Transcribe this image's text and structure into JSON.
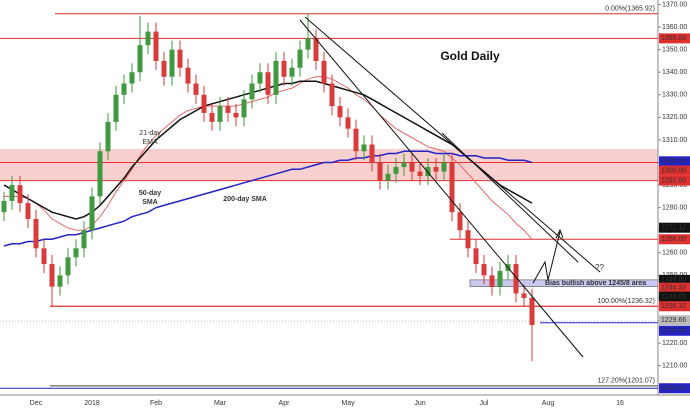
{
  "chart_data": {
    "type": "candlestick",
    "title": "Gold Daily",
    "categories": [
      null,
      null,
      null,
      null,
      "Dec",
      null,
      null,
      null,
      null,
      null,
      null,
      "2018",
      null,
      null,
      null,
      null,
      null,
      null,
      null,
      "Feb",
      null,
      null,
      null,
      null,
      null,
      null,
      null,
      "Mar",
      null,
      null,
      null,
      null,
      null,
      null,
      null,
      "Apr",
      null,
      null,
      null,
      null,
      null,
      null,
      null,
      "May",
      null,
      null,
      null,
      null,
      null,
      null,
      null,
      null,
      "Jun",
      null,
      null,
      null,
      null,
      null,
      null,
      null,
      "Jul",
      null,
      null,
      null,
      null,
      null,
      null,
      null,
      "Aug",
      null,
      null,
      null,
      null,
      null,
      null,
      null,
      null,
      "16",
      null,
      null,
      null,
      null
    ],
    "open": [
      1278,
      1283,
      1290,
      1282,
      1275,
      1262,
      1255,
      1245,
      1250,
      1258,
      1262,
      1270,
      1285,
      1305,
      1318,
      1330,
      1335,
      1340,
      1352,
      1358,
      1345,
      1338,
      1350,
      1342,
      1335,
      1330,
      1322,
      1318,
      1325,
      1322,
      1320,
      1328,
      1335,
      1340,
      1330,
      1345,
      1338,
      1342,
      1350,
      1355,
      1345,
      1335,
      1325,
      1320,
      1315,
      1305,
      1308,
      1300,
      1292,
      1295,
      1298,
      1300,
      1296,
      1294,
      1298,
      1296,
      1300,
      1278,
      1270,
      1262,
      1255,
      1250,
      1245,
      1252,
      1255,
      1242,
      1240,
      null,
      null,
      null,
      null,
      null,
      null,
      null,
      null,
      null,
      null,
      null,
      null,
      null,
      null,
      null
    ],
    "high": [
      1287,
      1294,
      1294,
      1286,
      1279,
      1266,
      1259,
      1254,
      1262,
      1266,
      1274,
      1289,
      1309,
      1322,
      1334,
      1339,
      1344,
      1365,
      1362,
      1362,
      1349,
      1354,
      1354,
      1346,
      1339,
      1334,
      1326,
      1329,
      1329,
      1326,
      1332,
      1339,
      1344,
      1344,
      1349,
      1349,
      1346,
      1354,
      1366,
      1359,
      1349,
      1339,
      1329,
      1324,
      1319,
      1312,
      1312,
      1304,
      1299,
      1302,
      1304,
      1304,
      1300,
      1302,
      1302,
      1304,
      1304,
      1282,
      1274,
      1266,
      1259,
      1254,
      1256,
      1259,
      1259,
      1246,
      1244,
      null,
      null,
      null,
      null,
      null,
      null,
      null,
      null,
      null,
      null,
      null,
      null,
      null,
      null,
      null
    ],
    "low": [
      1274,
      1279,
      1278,
      1271,
      1258,
      1251,
      1236,
      1241,
      1246,
      1254,
      1258,
      1266,
      1281,
      1301,
      1314,
      1326,
      1331,
      1336,
      1348,
      1341,
      1334,
      1334,
      1338,
      1331,
      1326,
      1318,
      1314,
      1314,
      1318,
      1316,
      1316,
      1324,
      1331,
      1326,
      1326,
      1334,
      1334,
      1338,
      1346,
      1341,
      1331,
      1321,
      1316,
      1311,
      1301,
      1301,
      1296,
      1288,
      1288,
      1291,
      1294,
      1292,
      1290,
      1290,
      1292,
      1292,
      1274,
      1266,
      1258,
      1251,
      1246,
      1241,
      1241,
      1248,
      1238,
      1236,
      1212,
      null,
      null,
      null,
      null,
      null,
      null,
      null,
      null,
      null,
      null,
      null,
      null,
      null,
      null,
      null
    ],
    "close": [
      1283,
      1290,
      1282,
      1275,
      1262,
      1255,
      1245,
      1250,
      1258,
      1262,
      1270,
      1285,
      1305,
      1318,
      1330,
      1335,
      1340,
      1352,
      1358,
      1345,
      1338,
      1350,
      1342,
      1335,
      1330,
      1322,
      1318,
      1325,
      1322,
      1320,
      1328,
      1335,
      1340,
      1330,
      1345,
      1338,
      1342,
      1350,
      1355,
      1345,
      1335,
      1325,
      1320,
      1315,
      1305,
      1308,
      1300,
      1292,
      1295,
      1298,
      1300,
      1296,
      1294,
      1298,
      1296,
      1300,
      1278,
      1270,
      1262,
      1255,
      1250,
      1245,
      1252,
      1255,
      1242,
      1240,
      1228,
      null,
      null,
      null,
      null,
      null,
      null,
      null,
      null,
      null,
      null,
      null,
      null,
      null,
      null,
      null
    ],
    "up_color": "#3f9a3f",
    "down_color": "#d93a3a",
    "series": [
      {
        "label_lines": [
          "21-day",
          "EMA"
        ],
        "color": "#e85a5a",
        "values": [
          1285,
          1285,
          1285,
          1284,
          1282,
          1279,
          1275,
          1273,
          1271,
          1270,
          1270,
          1272,
          1276,
          1281,
          1287,
          1292,
          1297,
          1303,
          1308,
          1312,
          1315,
          1318,
          1321,
          1323,
          1324,
          1325,
          1325,
          1325,
          1325,
          1325,
          1326,
          1327,
          1328,
          1329,
          1331,
          1332,
          1333,
          1335,
          1337,
          1338,
          1338,
          1337,
          1335,
          1333,
          1330,
          1328,
          1325,
          1321,
          1318,
          1315,
          1313,
          1311,
          1309,
          1307,
          1306,
          1305,
          1302,
          1299,
          1295,
          1291,
          1287,
          1283,
          1280,
          1277,
          1273,
          1270,
          1266,
          null,
          null,
          null,
          null,
          null,
          null,
          null,
          null,
          null,
          null,
          null,
          null,
          null,
          null,
          null
        ]
      },
      {
        "label_lines": [
          "50-day",
          "SMA"
        ],
        "color": "#111111",
        "values": [
          1290,
          1288,
          1286,
          1284,
          1282,
          1280,
          1278,
          1277,
          1276,
          1275,
          1276,
          1278,
          1281,
          1285,
          1289,
          1293,
          1298,
          1302,
          1306,
          1310,
          1313,
          1316,
          1319,
          1321,
          1323,
          1325,
          1326,
          1327,
          1328,
          1329,
          1330,
          1331,
          1332,
          1333,
          1334,
          1335,
          1335,
          1336,
          1336,
          1336,
          1335,
          1334,
          1333,
          1332,
          1331,
          1330,
          1328,
          1326,
          1324,
          1322,
          1320,
          1318,
          1316,
          1314,
          1312,
          1310,
          1308,
          1305,
          1302,
          1299,
          1296,
          1293,
          1290,
          1288,
          1286,
          1284,
          1282,
          null,
          null,
          null,
          null,
          null,
          null,
          null,
          null,
          null,
          null,
          null,
          null,
          null,
          null,
          null
        ]
      },
      {
        "label_lines": [
          "200-day SMA"
        ],
        "color": "#2323c8",
        "values": [
          1263,
          1264,
          1264,
          1265,
          1265,
          1266,
          1266,
          1267,
          1268,
          1268,
          1269,
          1270,
          1271,
          1272,
          1273,
          1274,
          1276,
          1277,
          1278,
          1280,
          1281,
          1282,
          1283,
          1284,
          1285,
          1286,
          1287,
          1288,
          1289,
          1290,
          1291,
          1292,
          1293,
          1294,
          1295,
          1296,
          1297,
          1297,
          1298,
          1299,
          1300,
          1300,
          1301,
          1301,
          1302,
          1302,
          1303,
          1303,
          1304,
          1304,
          1305,
          1305,
          1305,
          1305,
          1304,
          1304,
          1304,
          1303,
          1303,
          1303,
          1302,
          1302,
          1302,
          1301,
          1301,
          1301,
          1300,
          null,
          null,
          null,
          null,
          null,
          null,
          null,
          null,
          null,
          null,
          null,
          null,
          null,
          null,
          null
        ]
      }
    ],
    "ylim": [
      1197,
      1372
    ],
    "yticks": [
      {
        "value": 1210,
        "label": "1210.00"
      },
      {
        "value": 1220,
        "label": "1220.00"
      },
      {
        "value": 1230,
        "label": "1230.00"
      },
      {
        "value": 1240,
        "label": "1240.00"
      },
      {
        "value": 1250,
        "label": "1250.00"
      },
      {
        "value": 1260,
        "label": "1260.00"
      },
      {
        "value": 1270,
        "label": "1270.00"
      },
      {
        "value": 1280,
        "label": "1280.00"
      },
      {
        "value": 1290,
        "label": "1290.00"
      },
      {
        "value": 1300,
        "label": "1300.00"
      },
      {
        "value": 1310,
        "label": "1310.00"
      },
      {
        "value": 1320,
        "label": "1320.00"
      },
      {
        "value": 1330,
        "label": "1330.00"
      },
      {
        "value": 1340,
        "label": "1340.00"
      },
      {
        "value": 1350,
        "label": "1350.00"
      },
      {
        "value": 1360,
        "label": "1360.00"
      },
      {
        "value": 1370,
        "label": "1370.00"
      }
    ],
    "levels": [
      {
        "value": 1355,
        "label": "1355.00",
        "color": "#e03030"
      },
      {
        "value": 1300.53,
        "label": "1300.53",
        "color": "#2323c8"
      },
      {
        "value": 1300,
        "label": "1300.00",
        "color": "#e03030"
      },
      {
        "value": 1292,
        "label": "1292.00",
        "color": "#e03030"
      },
      {
        "value": 1271.12,
        "label": "1271.12",
        "color": "#111111"
      },
      {
        "value": 1266,
        "label": "1266.00",
        "color": "#e03030"
      },
      {
        "value": 1248,
        "label": "1248.00",
        "color": "#111111"
      },
      {
        "value": 1246.32,
        "label": "1246.32",
        "color": "#e03030"
      },
      {
        "value": 1245,
        "label": "1245.00",
        "color": "#111111"
      },
      {
        "value": 1236.32,
        "label": "1236.32",
        "color": "#e03030"
      },
      {
        "value": 1229.66,
        "label": "1229.66",
        "color": "#bbbbbb"
      },
      {
        "value": 1229,
        "label": "1229.00",
        "color": "#2323c8"
      },
      {
        "value": 1200,
        "label": "1200.00",
        "color": "#2323c8"
      }
    ],
    "fib_levels": [
      {
        "value": 1365.92,
        "label": "0.00%(1365.92)",
        "color": "#e03030"
      },
      {
        "value": 1236.32,
        "label": "100.00%(1236.32)",
        "color": "#e03030"
      },
      {
        "value": 1201.07,
        "label": "127.20%(1201.07)",
        "color": "#444444"
      }
    ],
    "zone": {
      "values": [
        1292,
        1306
      ],
      "color": "#f6c4c4"
    },
    "bias_box": {
      "values": [
        1245,
        1248
      ],
      "color": "#c9c9f0",
      "label": "Bias bullish above 1245/8 area"
    },
    "annotation": "??"
  }
}
